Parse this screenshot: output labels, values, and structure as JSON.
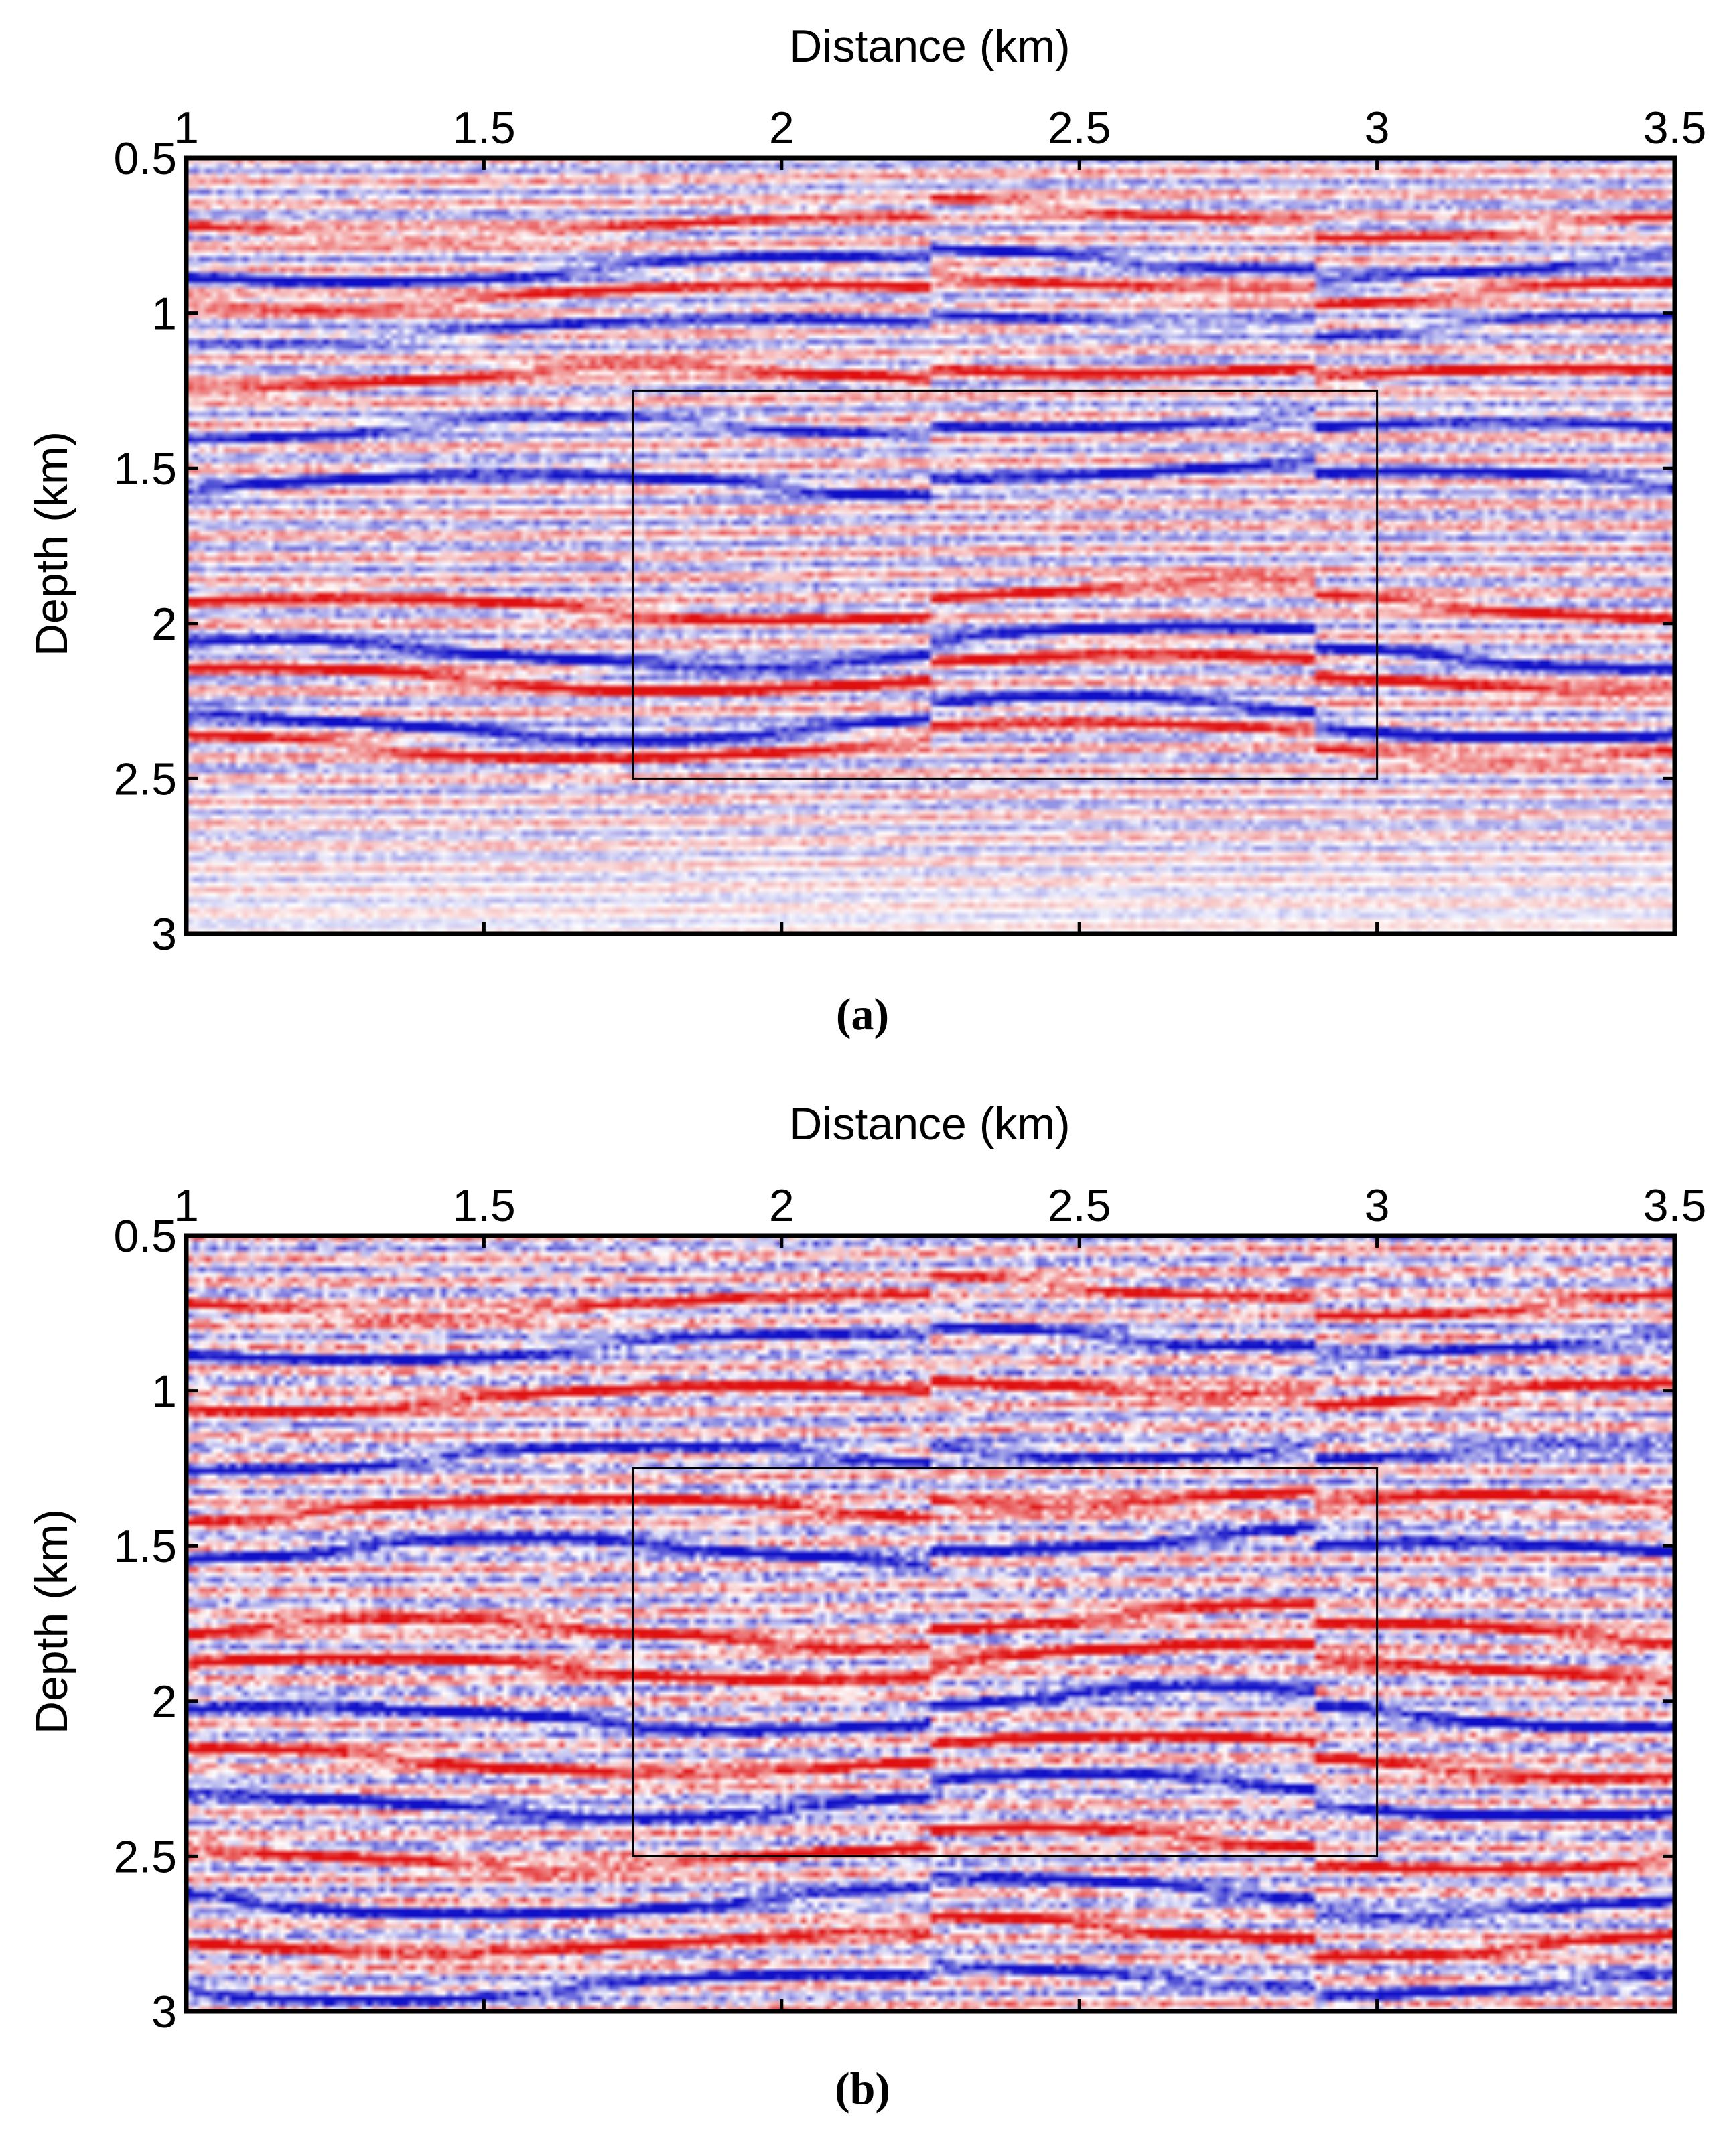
{
  "chart_data": [
    {
      "type": "heatmap",
      "panel": "a",
      "title": "",
      "xlabel": "Distance (km)",
      "ylabel": "Depth (km)",
      "x_ticks": [
        "1",
        "1.5",
        "2",
        "2.5",
        "3",
        "3.5"
      ],
      "y_ticks": [
        "0.5",
        "1",
        "1.5",
        "2",
        "2.5",
        "3"
      ],
      "xlim": [
        1,
        3.5
      ],
      "ylim": [
        0.5,
        3
      ],
      "colormap": [
        "#1010c8",
        "#ffffff",
        "#e01010"
      ],
      "highlight_box": {
        "x0": 1.75,
        "x1": 3.0,
        "y0": 1.25,
        "y1": 2.5
      },
      "reflectors": [
        {
          "depth": 0.72,
          "polarity": "red",
          "strength": 0.6
        },
        {
          "depth": 0.86,
          "polarity": "blue",
          "strength": 0.8
        },
        {
          "depth": 0.94,
          "polarity": "red",
          "strength": 0.7
        },
        {
          "depth": 1.05,
          "polarity": "blue",
          "strength": 0.6
        },
        {
          "depth": 1.21,
          "polarity": "red",
          "strength": 0.8
        },
        {
          "depth": 1.38,
          "polarity": "blue",
          "strength": 0.7
        },
        {
          "depth": 1.55,
          "polarity": "blue",
          "strength": 0.9
        },
        {
          "depth": 1.95,
          "polarity": "red",
          "strength": 0.8
        },
        {
          "depth": 2.1,
          "polarity": "blue",
          "strength": 1.0
        },
        {
          "depth": 2.18,
          "polarity": "red",
          "strength": 0.9
        },
        {
          "depth": 2.33,
          "polarity": "blue",
          "strength": 1.0
        },
        {
          "depth": 2.4,
          "polarity": "red",
          "strength": 0.7
        }
      ],
      "noise_level": 0.25,
      "deep_attenuation": 0.65,
      "caption": "(a)"
    },
    {
      "type": "heatmap",
      "panel": "b",
      "title": "",
      "xlabel": "Distance (km)",
      "ylabel": "Depth (km)",
      "x_ticks": [
        "1",
        "1.5",
        "2",
        "2.5",
        "3",
        "3.5"
      ],
      "y_ticks": [
        "0.5",
        "1",
        "1.5",
        "2",
        "2.5",
        "3"
      ],
      "xlim": [
        1,
        3.5
      ],
      "ylim": [
        0.5,
        3
      ],
      "colormap": [
        "#1010c8",
        "#ffffff",
        "#e01010"
      ],
      "highlight_box": {
        "x0": 1.75,
        "x1": 3.0,
        "y0": 1.25,
        "y1": 2.5
      },
      "reflectors": [
        {
          "depth": 0.72,
          "polarity": "red",
          "strength": 0.7
        },
        {
          "depth": 0.86,
          "polarity": "blue",
          "strength": 0.8
        },
        {
          "depth": 1.02,
          "polarity": "red",
          "strength": 0.9
        },
        {
          "depth": 1.22,
          "polarity": "blue",
          "strength": 0.8
        },
        {
          "depth": 1.38,
          "polarity": "red",
          "strength": 0.9
        },
        {
          "depth": 1.52,
          "polarity": "blue",
          "strength": 1.0
        },
        {
          "depth": 1.78,
          "polarity": "red",
          "strength": 0.9
        },
        {
          "depth": 1.9,
          "polarity": "red",
          "strength": 1.0
        },
        {
          "depth": 2.05,
          "polarity": "blue",
          "strength": 1.0
        },
        {
          "depth": 2.2,
          "polarity": "red",
          "strength": 0.9
        },
        {
          "depth": 2.33,
          "polarity": "blue",
          "strength": 1.0
        },
        {
          "depth": 2.5,
          "polarity": "red",
          "strength": 0.8
        },
        {
          "depth": 2.65,
          "polarity": "blue",
          "strength": 0.9
        },
        {
          "depth": 2.78,
          "polarity": "red",
          "strength": 0.9
        },
        {
          "depth": 2.92,
          "polarity": "blue",
          "strength": 0.8
        }
      ],
      "noise_level": 0.35,
      "deep_attenuation": 0.0,
      "caption": "(b)"
    }
  ]
}
